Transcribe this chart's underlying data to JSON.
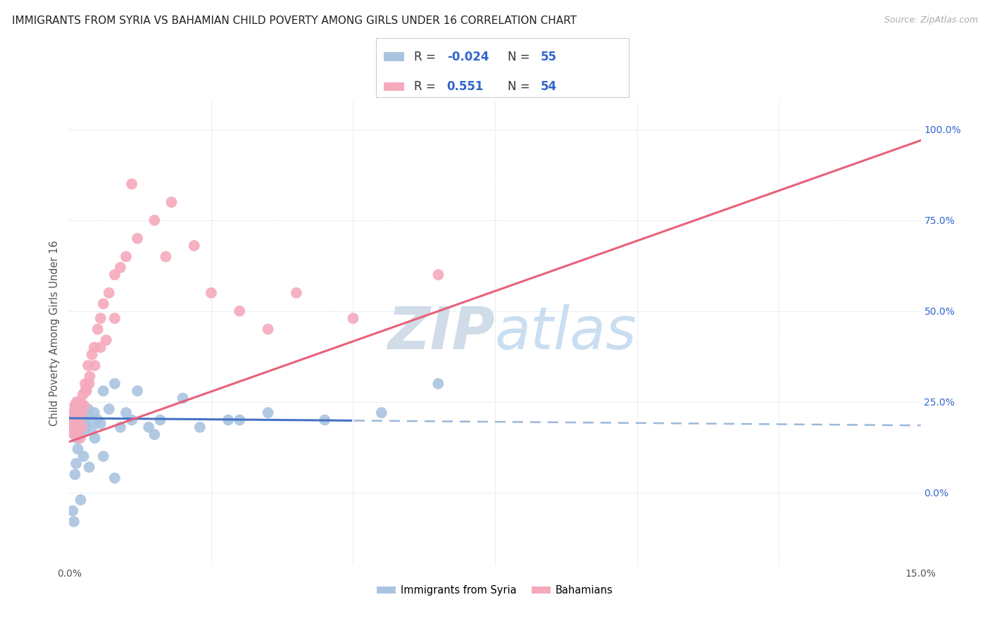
{
  "title": "IMMIGRANTS FROM SYRIA VS BAHAMIAN CHILD POVERTY AMONG GIRLS UNDER 16 CORRELATION CHART",
  "source": "Source: ZipAtlas.com",
  "ylabel": "Child Poverty Among Girls Under 16",
  "series1_label": "Immigrants from Syria",
  "series2_label": "Bahamians",
  "series1_color": "#aac4e0",
  "series2_color": "#f5aabc",
  "series1_line_color": "#4472c4",
  "series2_line_color": "#e8607a",
  "series1_line_dash_color": "#9ab8d8",
  "series1_R": "-0.024",
  "series1_N": "55",
  "series2_R": "0.551",
  "series2_N": "54",
  "legend_R_color": "#3366cc",
  "legend_N_color": "#3366cc",
  "watermark_color": "#d0dce8",
  "bg_color": "#ffffff",
  "grid_color": "#c8d8ea",
  "xlim": [
    0.0,
    15.0
  ],
  "ylim": [
    -20.0,
    108.0
  ],
  "right_yticks": [
    0.0,
    25.0,
    50.0,
    75.0,
    100.0
  ],
  "blue_line_y0": 20.5,
  "blue_line_y15": 18.5,
  "pink_line_y0": 14.0,
  "pink_line_y15": 97.0,
  "blue_solid_xmax": 5.0,
  "scatter1_x": [
    0.05,
    0.07,
    0.08,
    0.09,
    0.1,
    0.11,
    0.12,
    0.13,
    0.14,
    0.15,
    0.16,
    0.17,
    0.18,
    0.19,
    0.2,
    0.22,
    0.24,
    0.26,
    0.28,
    0.3,
    0.33,
    0.36,
    0.4,
    0.44,
    0.5,
    0.55,
    0.6,
    0.7,
    0.8,
    0.9,
    1.0,
    1.1,
    1.2,
    1.4,
    1.6,
    2.0,
    2.3,
    2.8,
    3.0,
    3.5,
    4.5,
    5.5,
    6.5,
    0.06,
    0.08,
    0.1,
    0.12,
    0.15,
    0.2,
    0.25,
    0.35,
    0.45,
    0.6,
    0.8,
    1.5
  ],
  "scatter1_y": [
    18.0,
    22.0,
    20.0,
    16.0,
    24.0,
    19.0,
    21.0,
    15.0,
    23.0,
    20.0,
    17.0,
    25.0,
    18.0,
    22.0,
    16.0,
    21.0,
    18.0,
    20.0,
    17.0,
    19.0,
    23.0,
    21.0,
    18.0,
    22.0,
    20.0,
    19.0,
    28.0,
    23.0,
    30.0,
    18.0,
    22.0,
    20.0,
    28.0,
    18.0,
    20.0,
    26.0,
    18.0,
    20.0,
    20.0,
    22.0,
    20.0,
    22.0,
    30.0,
    -5.0,
    -8.0,
    5.0,
    8.0,
    12.0,
    -2.0,
    10.0,
    7.0,
    15.0,
    10.0,
    4.0,
    16.0
  ],
  "scatter2_x": [
    0.05,
    0.07,
    0.08,
    0.09,
    0.1,
    0.11,
    0.12,
    0.13,
    0.14,
    0.15,
    0.16,
    0.17,
    0.18,
    0.19,
    0.2,
    0.22,
    0.24,
    0.26,
    0.28,
    0.3,
    0.33,
    0.36,
    0.4,
    0.44,
    0.5,
    0.55,
    0.6,
    0.7,
    0.8,
    0.9,
    1.0,
    1.2,
    1.5,
    1.8,
    2.2,
    2.5,
    3.0,
    3.5,
    4.0,
    5.0,
    6.5,
    0.06,
    0.1,
    0.14,
    0.18,
    0.22,
    0.28,
    0.35,
    0.45,
    0.55,
    0.65,
    0.8,
    1.1,
    1.7
  ],
  "scatter2_y": [
    20.0,
    18.0,
    22.0,
    16.0,
    24.0,
    19.0,
    17.0,
    25.0,
    20.0,
    22.0,
    18.0,
    23.0,
    20.0,
    15.0,
    25.0,
    22.0,
    27.0,
    24.0,
    30.0,
    28.0,
    35.0,
    32.0,
    38.0,
    40.0,
    45.0,
    48.0,
    52.0,
    55.0,
    60.0,
    62.0,
    65.0,
    70.0,
    75.0,
    80.0,
    68.0,
    55.0,
    50.0,
    45.0,
    55.0,
    48.0,
    60.0,
    17.0,
    22.0,
    20.0,
    23.0,
    18.0,
    28.0,
    30.0,
    35.0,
    40.0,
    42.0,
    48.0,
    85.0,
    65.0
  ]
}
